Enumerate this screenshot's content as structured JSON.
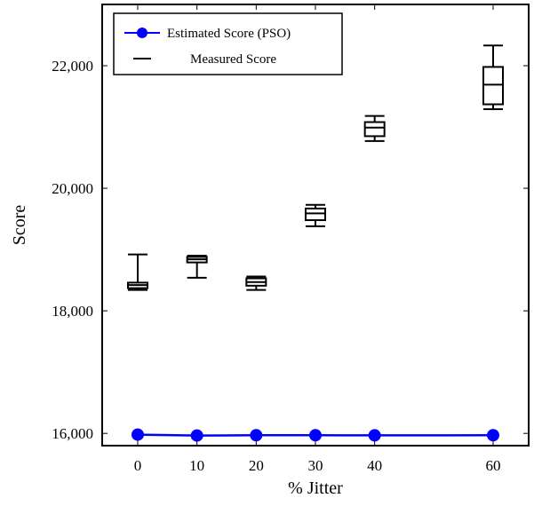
{
  "chart_data": {
    "type": "line+box",
    "xlabel": "% Jitter",
    "ylabel": "Score",
    "xticks": [
      0,
      10,
      20,
      30,
      40,
      60
    ],
    "xlim": [
      -6,
      66
    ],
    "ylim": [
      15800,
      23000
    ],
    "yticks": [
      16000,
      18000,
      20000,
      22000
    ],
    "ytick_labels": [
      "16,000",
      "18,000",
      "20,000",
      "22,000"
    ],
    "legend": {
      "placement": "top-left",
      "entries": [
        {
          "label": "Estimated Score (PSO)",
          "color": "#0000ff",
          "marker": "circle"
        },
        {
          "label": "Measured Score",
          "color": "#000000",
          "marker": "box"
        }
      ]
    },
    "series": [
      {
        "name": "Estimated Score (PSO)",
        "type": "line",
        "color": "#0000ff",
        "x": [
          0,
          10,
          20,
          30,
          40,
          60
        ],
        "y": [
          15980,
          15965,
          15970,
          15970,
          15968,
          15970
        ]
      },
      {
        "name": "Measured Score",
        "type": "box",
        "color": "#000000",
        "boxes": [
          {
            "x": 0,
            "min": 18340,
            "q1": 18370,
            "median": 18420,
            "q3": 18460,
            "max": 18920
          },
          {
            "x": 10,
            "min": 18540,
            "q1": 18790,
            "median": 18840,
            "q3": 18880,
            "max": 18900
          },
          {
            "x": 20,
            "min": 18340,
            "q1": 18410,
            "median": 18470,
            "q3": 18530,
            "max": 18560
          },
          {
            "x": 30,
            "min": 19380,
            "q1": 19480,
            "median": 19590,
            "q3": 19670,
            "max": 19730
          },
          {
            "x": 40,
            "min": 20770,
            "q1": 20850,
            "median": 20990,
            "q3": 21080,
            "max": 21180
          },
          {
            "x": 60,
            "min": 21290,
            "q1": 21370,
            "median": 21690,
            "q3": 21980,
            "max": 22330
          }
        ]
      }
    ]
  }
}
